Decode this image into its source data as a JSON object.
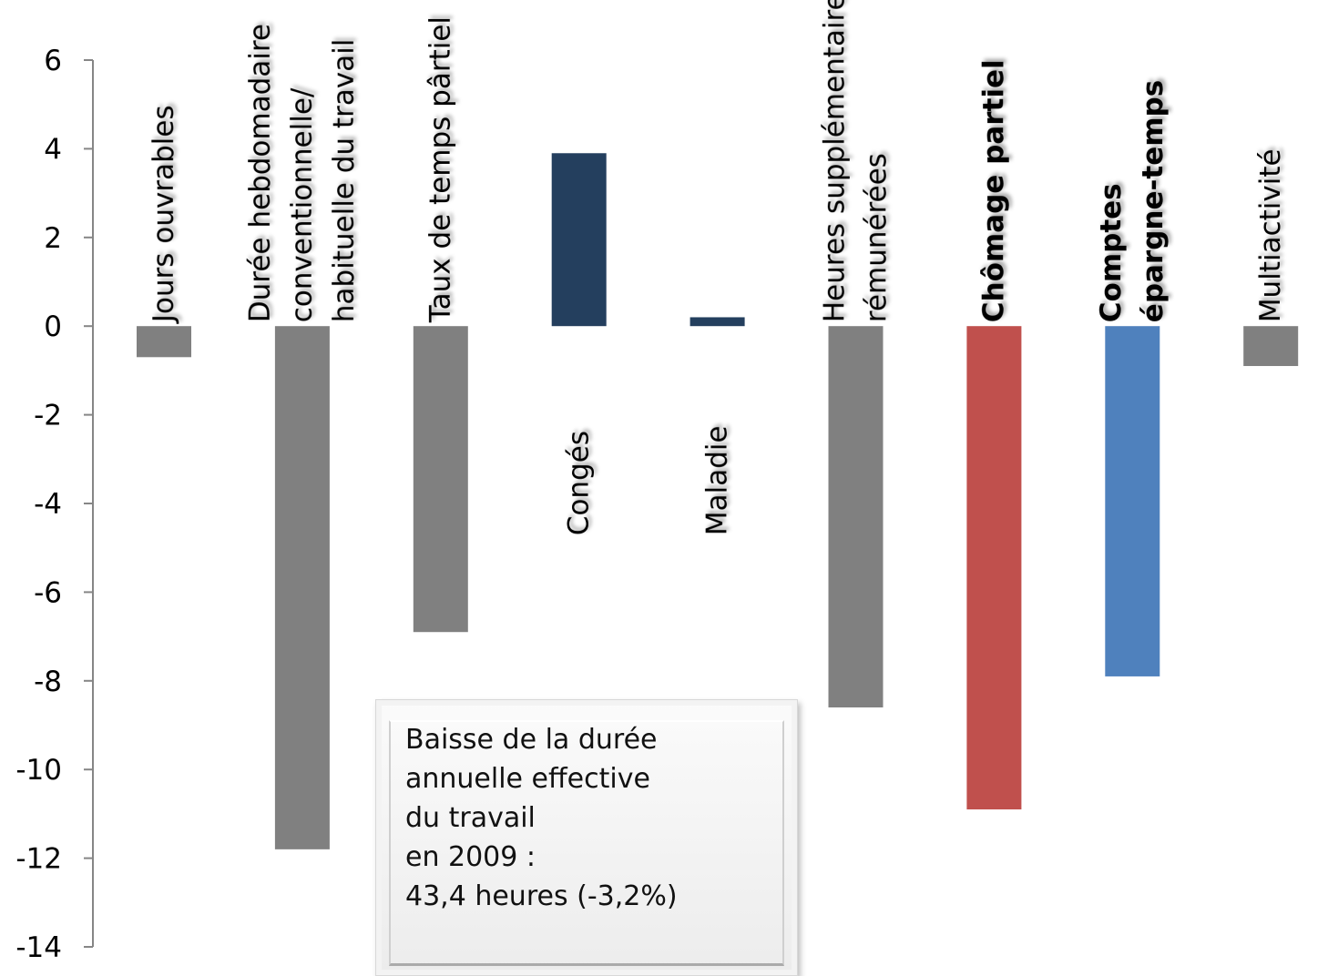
{
  "chart_data": {
    "type": "bar",
    "ylim": [
      -14,
      6
    ],
    "yticks": [
      6,
      4,
      2,
      0,
      -2,
      -4,
      -6,
      -8,
      -10,
      -12,
      -14
    ],
    "categories": [
      {
        "label": [
          "Jours ouvrables"
        ],
        "color": "#000000",
        "bold": false
      },
      {
        "label": [
          "Durée hebdomadaire",
          "conventionnelle/",
          "habituelle du travail"
        ],
        "color": "#000000",
        "bold": false
      },
      {
        "label": [
          "Taux de temps pârtiel"
        ],
        "color": "#000000",
        "bold": false
      },
      {
        "label": [
          "Congés"
        ],
        "color": "#000000",
        "bold": false
      },
      {
        "label": [
          "Maladie"
        ],
        "color": "#000000",
        "bold": false
      },
      {
        "label": [
          "Heures supplémentaires",
          "rémunérées"
        ],
        "color": "#000000",
        "bold": false
      },
      {
        "label": [
          "Chômage partiel"
        ],
        "color": "#c00000",
        "bold": true
      },
      {
        "label": [
          "Comptes",
          "épargne-temps"
        ],
        "color": "#1f4e79",
        "bold": true
      },
      {
        "label": [
          "Multiactivité"
        ],
        "color": "#000000",
        "bold": false
      }
    ],
    "values": [
      -0.7,
      -11.8,
      -6.9,
      3.9,
      0.2,
      -8.6,
      -10.9,
      -7.9,
      -0.9
    ],
    "bar_colors": [
      "#808080",
      "#808080",
      "#808080",
      "#243f5e",
      "#243f5e",
      "#808080",
      "#c0504d",
      "#4f81bd",
      "#808080"
    ],
    "grid": false,
    "legend": "none",
    "annotation": [
      "Baisse de la durée",
      "annuelle effective",
      "du travail",
      "en 2009 :",
      "43,4 heures (-3,2%)"
    ]
  }
}
